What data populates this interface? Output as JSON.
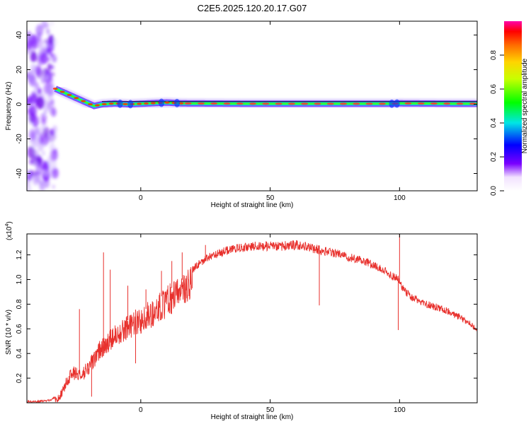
{
  "figure": {
    "title": "C2E5.2025.120.20.17.G07"
  },
  "chart_data": [
    {
      "type": "heatmap",
      "xlabel": "Height of straight line (km)",
      "ylabel": "Frequency (Hz)",
      "xlim": [
        -44,
        130
      ],
      "ylim": [
        -50,
        48
      ],
      "xticks": [
        0,
        50,
        100
      ],
      "yticks": [
        -40,
        -20,
        0,
        20,
        40
      ],
      "colorbar": {
        "label": "Normalized spectral amplitude",
        "range": [
          0,
          1
        ],
        "ticks": [
          "0.0",
          "0.2",
          "0.4",
          "0.6",
          "0.8"
        ]
      },
      "ridge": {
        "description_free": true,
        "x": [
          -33,
          -30,
          -27,
          -24,
          -21,
          -18,
          -15,
          -10,
          -5,
          0,
          10,
          16,
          50,
          97,
          100,
          130
        ],
        "y": [
          9,
          7,
          5,
          3,
          1,
          -1,
          0,
          0.5,
          0,
          0.3,
          1,
          0.5,
          0.3,
          0.3,
          0.5,
          0.3
        ]
      },
      "noise_region_x": [
        -44,
        -33
      ]
    },
    {
      "type": "line",
      "xlabel": "Height of straight line (km)",
      "ylabel": "SNR (10 * v/v)",
      "yscale_label": "(x10",
      "yscale_exp": "4",
      "yscale_close": ")",
      "xlim": [
        -44,
        130
      ],
      "ylim": [
        0,
        1.37
      ],
      "xticks": [
        0,
        50,
        100
      ],
      "yticks": [
        0.2,
        0.4,
        0.6,
        0.8,
        1.0,
        1.2
      ],
      "ytick_labels": [
        "0.2",
        "0.4",
        "0.6",
        "0.8",
        "1.0",
        "1.2"
      ],
      "color": "#e8302c",
      "series": [
        {
          "x": [
            -44,
            -40,
            -35,
            -32,
            -30,
            -28,
            -26,
            -25,
            -24,
            -22,
            -20,
            -18,
            -16,
            -14,
            -12,
            -10,
            -5,
            0,
            5,
            10,
            15,
            20,
            25,
            30,
            35,
            40,
            45,
            50,
            55,
            60,
            65,
            70,
            75,
            80,
            85,
            90,
            95,
            97,
            99,
            100,
            101,
            103,
            105,
            110,
            115,
            120,
            125,
            130
          ],
          "y": [
            0.01,
            0.01,
            0.02,
            0.06,
            0.15,
            0.25,
            0.3,
            0.3,
            0.28,
            0.3,
            0.36,
            0.42,
            0.5,
            0.55,
            0.6,
            0.65,
            0.72,
            0.78,
            0.86,
            0.95,
            1.03,
            1.12,
            1.2,
            1.25,
            1.28,
            1.3,
            1.31,
            1.31,
            1.31,
            1.32,
            1.3,
            1.27,
            1.25,
            1.22,
            1.19,
            1.15,
            1.1,
            1.06,
            1.04,
            1.02,
            0.97,
            0.92,
            0.88,
            0.83,
            0.8,
            0.76,
            0.7,
            0.63
          ]
        }
      ],
      "spikes": [
        {
          "x": -23.7,
          "y": 0.76
        },
        {
          "x": -14.4,
          "y": 1.22
        },
        {
          "x": -11.8,
          "y": 1.08
        },
        {
          "x": -5,
          "y": 0.95
        },
        {
          "x": 2,
          "y": 0.92
        },
        {
          "x": 8,
          "y": 1.07
        },
        {
          "x": 12,
          "y": 1.15
        },
        {
          "x": 16,
          "y": 1.22
        },
        {
          "x": 25,
          "y": 1.28
        },
        {
          "x": 100,
          "y": 1.37
        }
      ],
      "dips": [
        {
          "x": -19,
          "y": 0.05
        },
        {
          "x": -2,
          "y": 0.32
        },
        {
          "x": 69,
          "y": 0.79
        },
        {
          "x": 99.5,
          "y": 0.59
        }
      ]
    }
  ]
}
